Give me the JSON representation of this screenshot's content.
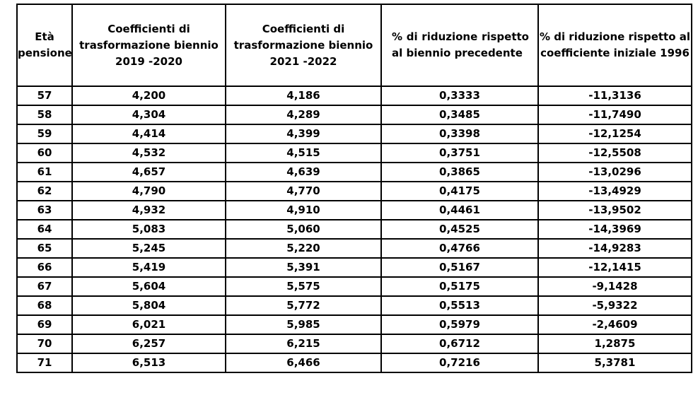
{
  "headers": [
    "Età pensione",
    "Coefficienti di trasformazione biennio 2019 -2020",
    "Coefficienti di trasformazione biennio 2021 -2022",
    "% di riduzione rispetto al biennio precedente",
    "% di riduzione rispetto al coefficiente iniziale 1996"
  ],
  "rows": [
    [
      "57",
      "4,200",
      "4,186",
      "0,3333",
      "-11,3136"
    ],
    [
      "58",
      "4,304",
      "4,289",
      "0,3485",
      "-11,7490"
    ],
    [
      "59",
      "4,414",
      "4,399",
      "0,3398",
      "-12,1254"
    ],
    [
      "60",
      "4,532",
      "4,515",
      "0,3751",
      "-12,5508"
    ],
    [
      "61",
      "4,657",
      "4,639",
      "0,3865",
      "-13,0296"
    ],
    [
      "62",
      "4,790",
      "4,770",
      "0,4175",
      "-13,4929"
    ],
    [
      "63",
      "4,932",
      "4,910",
      "0,4461",
      "-13,9502"
    ],
    [
      "64",
      "5,083",
      "5,060",
      "0,4525",
      "-14,3969"
    ],
    [
      "65",
      "5,245",
      "5,220",
      "0,4766",
      "-14,9283"
    ],
    [
      "66",
      "5,419",
      "5,391",
      "0,5167",
      "-12,1415"
    ],
    [
      "67",
      "5,604",
      "5,575",
      "0,5175",
      "-9,1428"
    ],
    [
      "68",
      "5,804",
      "5,772",
      "0,5513",
      "-5,9322"
    ],
    [
      "69",
      "6,021",
      "5,985",
      "0,5979",
      "-2,4609"
    ],
    [
      "70",
      "6,257",
      "6,215",
      "0,6712",
      "1,2875"
    ],
    [
      "71",
      "6,513",
      "6,466",
      "0,7216",
      "5,3781"
    ]
  ]
}
